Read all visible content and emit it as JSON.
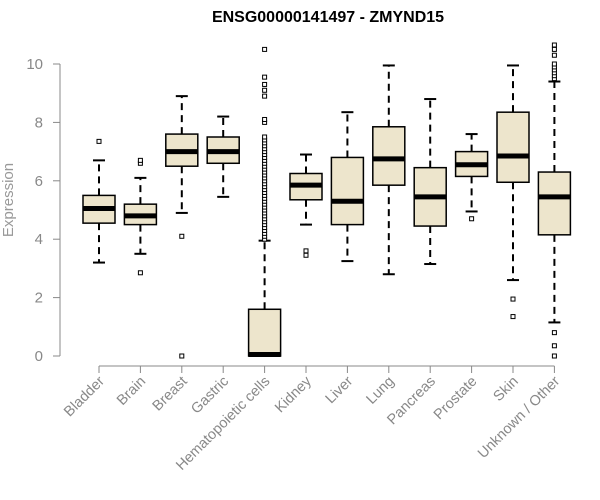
{
  "chart_data": {
    "type": "boxplot",
    "title": "ENSG00000141497 - ZMYND15",
    "xlabel": "",
    "ylabel": "Expression",
    "ylim": [
      0,
      10.6
    ],
    "yticks": [
      0,
      2,
      4,
      6,
      8,
      10
    ],
    "colors": {
      "box_fill": "#ede5cc",
      "box_stroke": "#000000",
      "axis": "#888888"
    },
    "categories": [
      "Bladder",
      "Brain",
      "Breast",
      "Gastric",
      "Hematopoietic cells",
      "Kidney",
      "Liver",
      "Lung",
      "Pancreas",
      "Prostate",
      "Skin",
      "Unknown / Other"
    ],
    "series": [
      {
        "name": "Bladder",
        "min": 3.2,
        "q1": 4.55,
        "median": 5.05,
        "q3": 5.5,
        "max": 6.7,
        "outliers": [
          7.35
        ]
      },
      {
        "name": "Brain",
        "min": 3.5,
        "q1": 4.5,
        "median": 4.8,
        "q3": 5.2,
        "max": 6.1,
        "outliers": [
          2.85,
          6.6,
          6.7
        ]
      },
      {
        "name": "Breast",
        "min": 4.9,
        "q1": 6.5,
        "median": 7.0,
        "q3": 7.6,
        "max": 8.9,
        "outliers": [
          4.1,
          0.0
        ]
      },
      {
        "name": "Gastric",
        "min": 5.45,
        "q1": 6.6,
        "median": 7.0,
        "q3": 7.5,
        "max": 8.2,
        "outliers": []
      },
      {
        "name": "Hematopoietic cells",
        "min": 0.0,
        "q1": 0.0,
        "median": 0.05,
        "q3": 1.6,
        "max": 3.95,
        "outliers": [
          4.0,
          4.1,
          4.2,
          4.3,
          4.4,
          4.5,
          4.6,
          4.7,
          4.8,
          4.9,
          5.0,
          5.1,
          5.2,
          5.3,
          5.4,
          5.5,
          5.6,
          5.7,
          5.8,
          5.9,
          6.0,
          6.1,
          6.2,
          6.3,
          6.4,
          6.5,
          6.6,
          6.7,
          6.8,
          6.9,
          7.0,
          7.1,
          7.2,
          7.3,
          7.4,
          7.5,
          8.0,
          8.1,
          8.9,
          9.1,
          9.3,
          9.55,
          10.5
        ]
      },
      {
        "name": "Kidney",
        "min": 4.5,
        "q1": 5.35,
        "median": 5.85,
        "q3": 6.25,
        "max": 6.9,
        "outliers": [
          3.45,
          3.6
        ]
      },
      {
        "name": "Liver",
        "min": 3.25,
        "q1": 4.5,
        "median": 5.3,
        "q3": 6.8,
        "max": 8.35,
        "outliers": []
      },
      {
        "name": "Lung",
        "min": 2.8,
        "q1": 5.85,
        "median": 6.75,
        "q3": 7.85,
        "max": 9.95,
        "outliers": []
      },
      {
        "name": "Pancreas",
        "min": 3.15,
        "q1": 4.45,
        "median": 5.45,
        "q3": 6.45,
        "max": 8.8,
        "outliers": []
      },
      {
        "name": "Prostate",
        "min": 4.95,
        "q1": 6.15,
        "median": 6.55,
        "q3": 7.0,
        "max": 7.6,
        "outliers": [
          4.7
        ]
      },
      {
        "name": "Skin",
        "min": 2.6,
        "q1": 5.95,
        "median": 6.85,
        "q3": 8.35,
        "max": 9.95,
        "outliers": [
          1.95,
          1.35
        ]
      },
      {
        "name": "Unknown / Other",
        "min": 1.15,
        "q1": 4.15,
        "median": 5.45,
        "q3": 6.3,
        "max": 9.4,
        "outliers": [
          0.0,
          0.35,
          0.8,
          9.5,
          9.6,
          9.7,
          9.8,
          9.9,
          10.0,
          10.3,
          10.5,
          10.65
        ]
      }
    ]
  }
}
